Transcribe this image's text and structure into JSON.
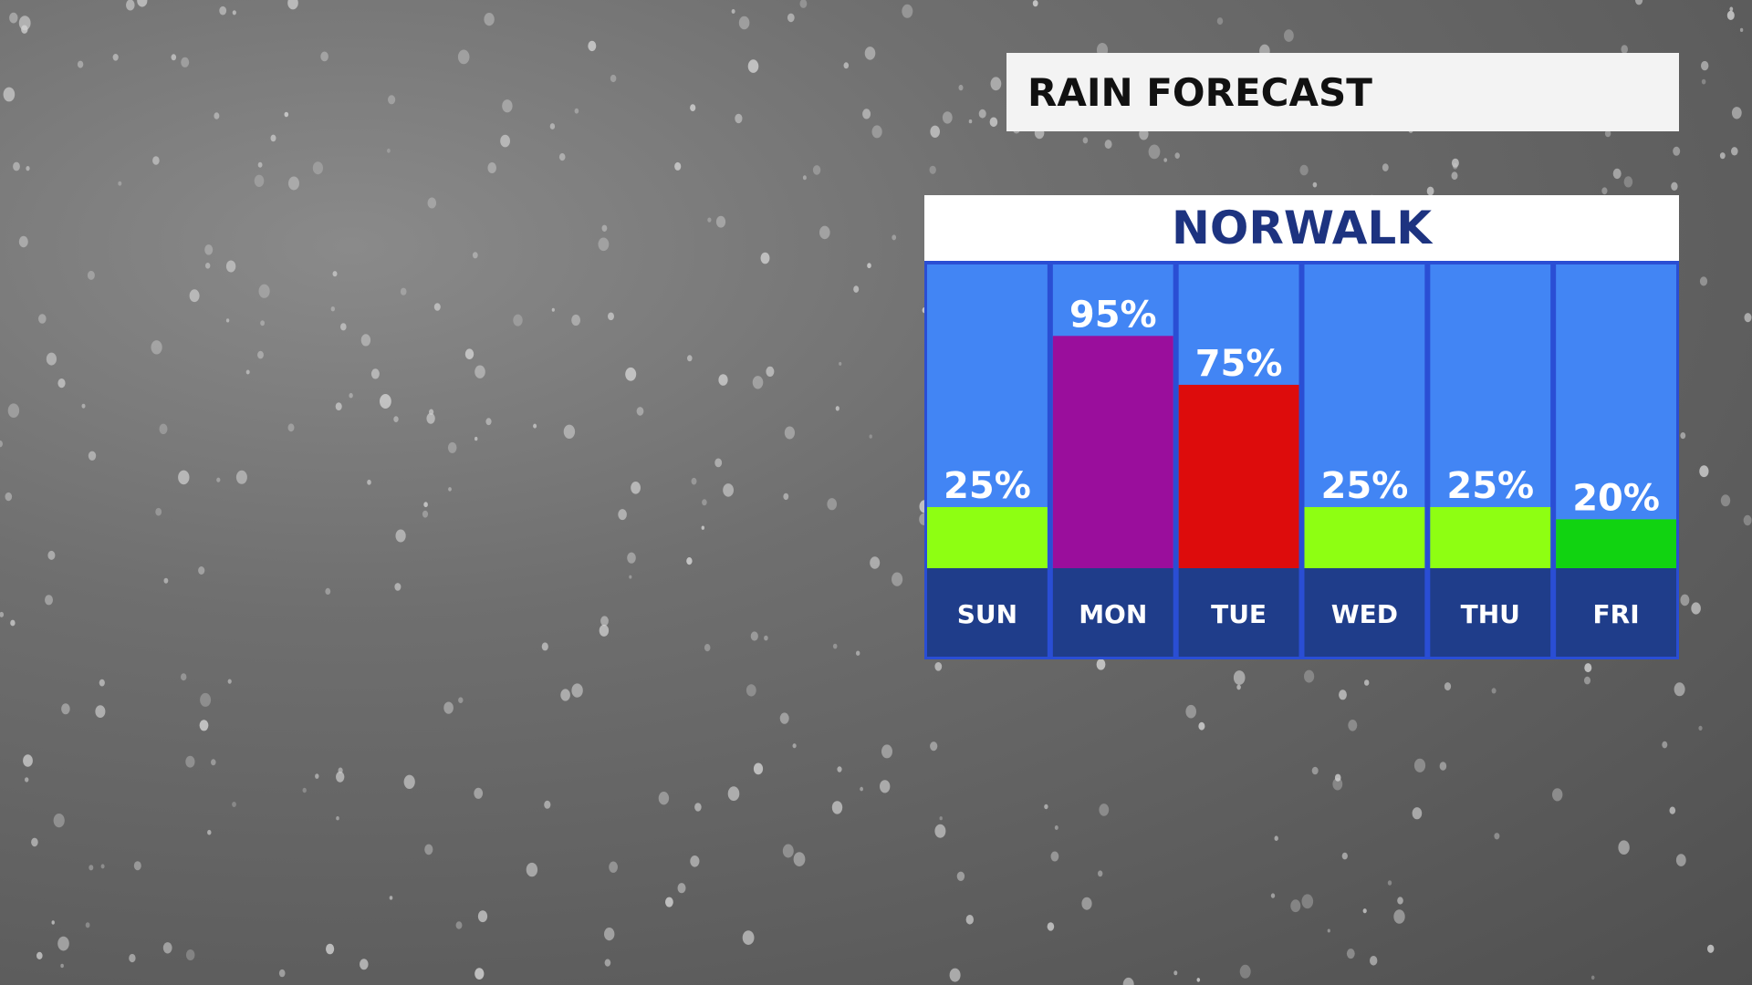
{
  "header": {
    "title": "RAIN FORECAST"
  },
  "panel": {
    "location": "NORWALK"
  },
  "colors": {
    "column_bg": "#4285f4",
    "day_bg": "#1f3d8a",
    "panel_border": "#2a4ed4"
  },
  "chart_data": {
    "type": "bar",
    "title": "RAIN FORECAST",
    "subtitle": "NORWALK",
    "categories": [
      "SUN",
      "MON",
      "TUE",
      "WED",
      "THU",
      "FRI"
    ],
    "values": [
      25,
      95,
      75,
      25,
      25,
      20
    ],
    "value_labels": [
      "25%",
      "95%",
      "75%",
      "25%",
      "25%",
      "20%"
    ],
    "bar_colors": [
      "#8eff12",
      "#9a0e9c",
      "#dd0c0c",
      "#8eff12",
      "#8eff12",
      "#11d311"
    ],
    "ylim": [
      0,
      100
    ],
    "grid": false
  }
}
